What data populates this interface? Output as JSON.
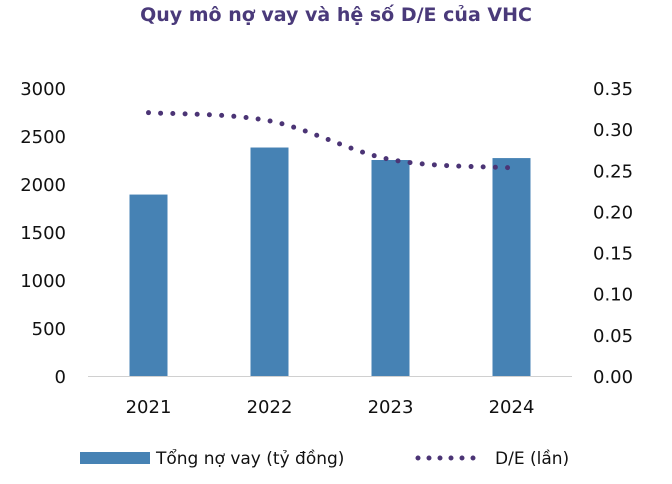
{
  "chart_data": {
    "type": "bar",
    "title": "Quy mô nợ vay và hệ số D/E của VHC",
    "categories": [
      "2021",
      "2022",
      "2023",
      "2024"
    ],
    "series": [
      {
        "name": "Tổng nợ vay (tỷ đồng)",
        "type": "bar",
        "axis": "left",
        "color": "#4682b4",
        "values": [
          1890,
          2380,
          2250,
          2270
        ]
      },
      {
        "name": "D/E (lần)",
        "type": "line",
        "style": "dotted",
        "axis": "right",
        "color": "#4b3475",
        "values": [
          0.32,
          0.31,
          0.263,
          0.253
        ]
      }
    ],
    "y_left": {
      "lim": [
        0,
        3000
      ],
      "ticks": [
        "0",
        "500",
        "1000",
        "1500",
        "2000",
        "2500",
        "3000"
      ]
    },
    "y_right": {
      "lim": [
        0,
        0.35
      ],
      "ticks": [
        "0.00",
        "0.05",
        "0.10",
        "0.15",
        "0.20",
        "0.25",
        "0.30",
        "0.35"
      ]
    },
    "grid": false,
    "legend": "bottom"
  }
}
